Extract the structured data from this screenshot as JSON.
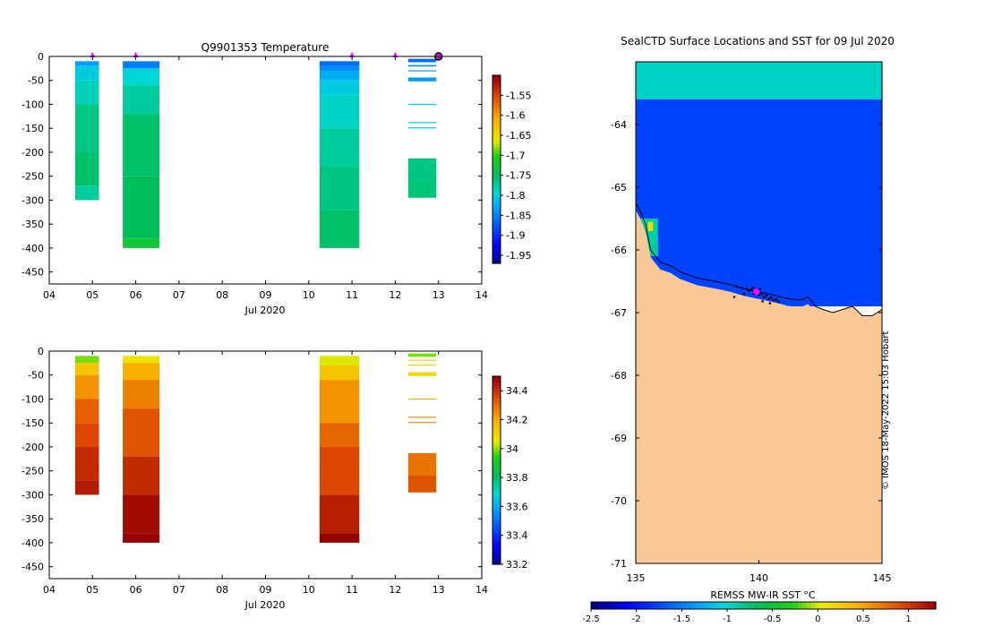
{
  "chart_data": [
    {
      "id": "temperature",
      "type": "heatmap",
      "title": "Q9901353  Temperature",
      "xlabel": "Jul 2020",
      "ylabel": "",
      "xticks": [
        "04",
        "05",
        "06",
        "07",
        "08",
        "09",
        "10",
        "11",
        "12",
        "13",
        "14"
      ],
      "xlim": [
        4,
        14
      ],
      "ylim": [
        -475,
        0
      ],
      "yticks": [
        0,
        -50,
        -100,
        -150,
        -200,
        -250,
        -300,
        -350,
        -400,
        -450
      ],
      "colorbar_ticks": [
        "-1.55",
        "-1.6",
        "-1.65",
        "-1.7",
        "-1.75",
        "-1.8",
        "-1.85",
        "-1.9",
        "-1.95"
      ],
      "colorbar_range": [
        -1.97,
        -1.5
      ],
      "surfacing_markers": [
        5.0,
        6.0,
        11.0,
        12.0
      ],
      "end_marker": 13.0,
      "profiles": [
        {
          "x0": 4.6,
          "x1": 5.15,
          "top": -10,
          "bottom": -300,
          "bands": [
            {
              "top": -10,
              "bottom": -20,
              "value": -1.83
            },
            {
              "top": -20,
              "bottom": -50,
              "value": -1.8
            },
            {
              "top": -50,
              "bottom": -100,
              "value": -1.78
            },
            {
              "top": -100,
              "bottom": -200,
              "value": -1.76
            },
            {
              "top": -200,
              "bottom": -270,
              "value": -1.75
            },
            {
              "top": -270,
              "bottom": -300,
              "value": -1.77
            }
          ]
        },
        {
          "x0": 5.7,
          "x1": 6.55,
          "top": -10,
          "bottom": -400,
          "bands": [
            {
              "top": -10,
              "bottom": -25,
              "value": -1.85
            },
            {
              "top": -25,
              "bottom": -60,
              "value": -1.79
            },
            {
              "top": -60,
              "bottom": -120,
              "value": -1.77
            },
            {
              "top": -120,
              "bottom": -250,
              "value": -1.75
            },
            {
              "top": -250,
              "bottom": -380,
              "value": -1.745
            },
            {
              "top": -380,
              "bottom": -400,
              "value": -1.72
            }
          ]
        },
        {
          "x0": 10.25,
          "x1": 11.17,
          "top": -10,
          "bottom": -400,
          "bands": [
            {
              "top": -10,
              "bottom": -20,
              "value": -1.86
            },
            {
              "top": -20,
              "bottom": -30,
              "value": -1.84
            },
            {
              "top": -30,
              "bottom": -50,
              "value": -1.82
            },
            {
              "top": -50,
              "bottom": -80,
              "value": -1.8
            },
            {
              "top": -80,
              "bottom": -150,
              "value": -1.785
            },
            {
              "top": -150,
              "bottom": -230,
              "value": -1.77
            },
            {
              "top": -230,
              "bottom": -320,
              "value": -1.76
            },
            {
              "top": -320,
              "bottom": -400,
              "value": -1.75
            }
          ]
        },
        {
          "x0": 12.3,
          "x1": 12.95,
          "top": -5,
          "bottom": -295,
          "bands": [
            {
              "top": -5,
              "bottom": -12,
              "value": -1.86
            },
            {
              "top": -18,
              "bottom": -21,
              "value": -1.84
            },
            {
              "top": -29,
              "bottom": -31,
              "value": -1.83
            },
            {
              "top": -44,
              "bottom": -52,
              "value": -1.83
            },
            {
              "top": -99,
              "bottom": -101,
              "value": -1.8
            },
            {
              "top": -137,
              "bottom": -139,
              "value": -1.8
            },
            {
              "top": -148,
              "bottom": -150,
              "value": -1.8
            },
            {
              "top": -213,
              "bottom": -260,
              "value": -1.76
            },
            {
              "top": -260,
              "bottom": -295,
              "value": -1.755
            }
          ]
        }
      ]
    },
    {
      "id": "salinity",
      "type": "heatmap",
      "title": "",
      "xlabel": "Jul 2020",
      "ylabel": "",
      "xticks": [
        "04",
        "05",
        "06",
        "07",
        "08",
        "09",
        "10",
        "11",
        "12",
        "13",
        "14"
      ],
      "xlim": [
        4,
        14
      ],
      "ylim": [
        -475,
        0
      ],
      "yticks": [
        0,
        -50,
        -100,
        -150,
        -200,
        -250,
        -300,
        -350,
        -400,
        -450
      ],
      "colorbar_ticks": [
        "34.4",
        "34.2",
        "34",
        "33.8",
        "33.6",
        "33.4",
        "33.2"
      ],
      "colorbar_range": [
        33.2,
        34.5
      ],
      "profiles": [
        {
          "x0": 4.6,
          "x1": 5.15,
          "top": -10,
          "bottom": -300,
          "bands": [
            {
              "top": -10,
              "bottom": -25,
              "value": 34.0
            },
            {
              "top": -25,
              "bottom": -50,
              "value": 34.15
            },
            {
              "top": -50,
              "bottom": -100,
              "value": 34.25
            },
            {
              "top": -100,
              "bottom": -150,
              "value": 34.33
            },
            {
              "top": -150,
              "bottom": -200,
              "value": 34.37
            },
            {
              "top": -200,
              "bottom": -270,
              "value": 34.42
            },
            {
              "top": -270,
              "bottom": -300,
              "value": 34.45
            }
          ]
        },
        {
          "x0": 5.7,
          "x1": 6.55,
          "top": -10,
          "bottom": -400,
          "bands": [
            {
              "top": -10,
              "bottom": -25,
              "value": 34.08
            },
            {
              "top": -25,
              "bottom": -60,
              "value": 34.2
            },
            {
              "top": -60,
              "bottom": -120,
              "value": 34.28
            },
            {
              "top": -120,
              "bottom": -220,
              "value": 34.35
            },
            {
              "top": -220,
              "bottom": -300,
              "value": 34.42
            },
            {
              "top": -300,
              "bottom": -380,
              "value": 34.48
            },
            {
              "top": -380,
              "bottom": -400,
              "value": 34.52
            }
          ]
        },
        {
          "x0": 10.25,
          "x1": 11.17,
          "top": -10,
          "bottom": -400,
          "bands": [
            {
              "top": -10,
              "bottom": -30,
              "value": 34.05
            },
            {
              "top": -30,
              "bottom": -60,
              "value": 34.15
            },
            {
              "top": -60,
              "bottom": -150,
              "value": 34.25
            },
            {
              "top": -150,
              "bottom": -200,
              "value": 34.32
            },
            {
              "top": -200,
              "bottom": -300,
              "value": 34.37
            },
            {
              "top": -300,
              "bottom": -380,
              "value": 34.44
            },
            {
              "top": -380,
              "bottom": -400,
              "value": 34.5
            }
          ]
        },
        {
          "x0": 12.3,
          "x1": 12.95,
          "top": -5,
          "bottom": -295,
          "bands": [
            {
              "top": -5,
              "bottom": -12,
              "value": 34.0
            },
            {
              "top": -18,
              "bottom": -20,
              "value": 34.1
            },
            {
              "top": -28,
              "bottom": -30,
              "value": 34.1
            },
            {
              "top": -44,
              "bottom": -52,
              "value": 34.1
            },
            {
              "top": -99,
              "bottom": -101,
              "value": 34.2
            },
            {
              "top": -137,
              "bottom": -139,
              "value": 34.25
            },
            {
              "top": -148,
              "bottom": -150,
              "value": 34.25
            },
            {
              "top": -213,
              "bottom": -260,
              "value": 34.3
            },
            {
              "top": -260,
              "bottom": -295,
              "value": 34.35
            }
          ]
        }
      ]
    },
    {
      "id": "sst-map",
      "type": "heatmap",
      "title": "SealCTD Surface Locations and SST for 09 Jul 2020",
      "xlabel": "",
      "colorbar_label": "REMSS MW-IR SST °C",
      "xticks": [
        135,
        140,
        145
      ],
      "yticks": [
        -64,
        -65,
        -66,
        -67,
        -68,
        -69,
        -70,
        -71
      ],
      "xlim": [
        135,
        145
      ],
      "ylim": [
        -71,
        -63.0
      ],
      "colorbar_ticks": [
        "-2.5",
        "-2",
        "-1.5",
        "-1",
        "-0.5",
        "0",
        "0.5",
        "1"
      ],
      "colorbar_range": [
        -2.5,
        1.3
      ],
      "land_color": "#fac896",
      "regions": [
        {
          "name": "green-band",
          "lon0": 135,
          "lon1": 145,
          "lat0": -63.0,
          "lat1": -63.6,
          "value": -1.0
        },
        {
          "name": "open-water",
          "lon0": 135,
          "lon1": 145,
          "lat0": -63.6,
          "lat1": -66.9,
          "value": -1.8
        },
        {
          "name": "west-coast-strip",
          "lon0": 135.2,
          "lon1": 135.9,
          "lat0": -65.5,
          "lat1": -66.1,
          "value": -0.9
        },
        {
          "name": "warm-pixel",
          "lon0": 135.5,
          "lon1": 135.7,
          "lat0": -65.55,
          "lat1": -65.7,
          "value": 0.1
        }
      ],
      "coastline": [
        [
          135,
          -65.25
        ],
        [
          135.2,
          -65.4
        ],
        [
          135.4,
          -65.6
        ],
        [
          135.6,
          -66.0
        ],
        [
          136.0,
          -66.2
        ],
        [
          136.4,
          -66.25
        ],
        [
          136.8,
          -66.35
        ],
        [
          137.5,
          -66.45
        ],
        [
          138.2,
          -66.5
        ],
        [
          138.8,
          -66.55
        ],
        [
          139.4,
          -66.62
        ],
        [
          140.0,
          -66.67
        ],
        [
          140.6,
          -66.72
        ],
        [
          141.2,
          -66.78
        ],
        [
          141.7,
          -66.8
        ],
        [
          142.0,
          -66.75
        ],
        [
          142.3,
          -66.9
        ],
        [
          142.6,
          -66.95
        ],
        [
          143.0,
          -67.0
        ],
        [
          143.4,
          -66.95
        ],
        [
          143.8,
          -66.9
        ],
        [
          144.2,
          -67.05
        ],
        [
          144.6,
          -67.05
        ],
        [
          145.0,
          -66.95
        ]
      ],
      "seal_positions": [
        [
          139.3,
          -66.6
        ],
        [
          139.5,
          -66.62
        ],
        [
          139.6,
          -66.65
        ],
        [
          139.7,
          -66.63
        ],
        [
          139.8,
          -66.7
        ],
        [
          139.9,
          -66.68
        ],
        [
          140.0,
          -66.72
        ],
        [
          140.1,
          -66.7
        ],
        [
          140.2,
          -66.75
        ],
        [
          140.3,
          -66.73
        ],
        [
          140.4,
          -66.78
        ],
        [
          140.5,
          -66.76
        ],
        [
          140.6,
          -66.8
        ],
        [
          140.7,
          -66.79
        ],
        [
          140.8,
          -66.82
        ],
        [
          139.1,
          -66.58
        ],
        [
          139.4,
          -66.7
        ],
        [
          139.0,
          -66.75
        ],
        [
          140.45,
          -66.85
        ],
        [
          140.15,
          -66.82
        ],
        [
          139.75,
          -66.6
        ],
        [
          140.05,
          -66.62
        ]
      ],
      "last_position": [
        139.9,
        -66.67
      ]
    }
  ],
  "credit": "© IMOS 18-May-2022 15:03 Hobart",
  "colors": {
    "marker": "#ff00ff",
    "land": "#fac896"
  }
}
